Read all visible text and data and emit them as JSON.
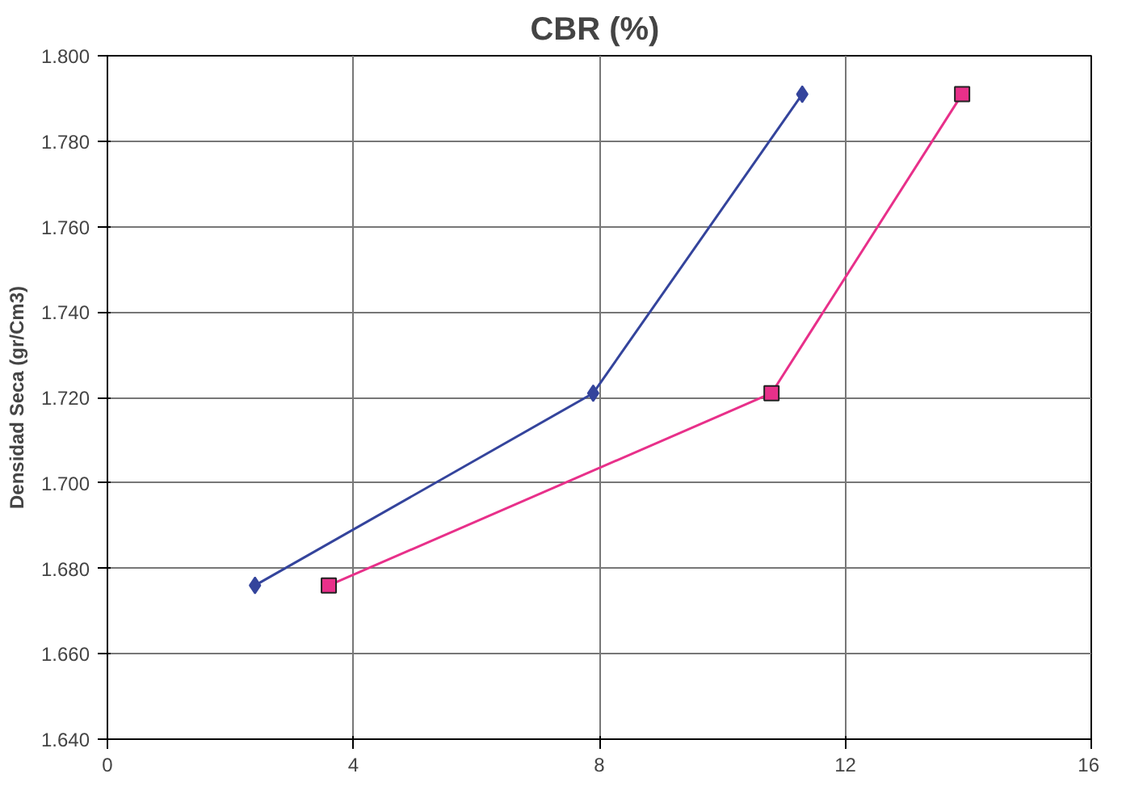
{
  "chart_data": {
    "type": "line",
    "title": "CBR  (%)",
    "ylabel": "Densidad Seca (gr/Cm3)",
    "xlim": [
      0,
      16
    ],
    "xticks": [
      0,
      4,
      8,
      12,
      16
    ],
    "ylim": [
      1.64,
      1.8
    ],
    "yticks": [
      {
        "value": 1.64,
        "label": "1.640"
      },
      {
        "value": 1.66,
        "label": "1.660"
      },
      {
        "value": 1.68,
        "label": "1.680"
      },
      {
        "value": 1.7,
        "label": "1.700"
      },
      {
        "value": 1.72,
        "label": "1.720"
      },
      {
        "value": 1.74,
        "label": "1.740"
      },
      {
        "value": 1.76,
        "label": "1.760"
      },
      {
        "value": 1.78,
        "label": "1.780"
      },
      {
        "value": 1.8,
        "label": "1.800"
      }
    ],
    "grid": true,
    "marker": "diamond",
    "series": [
      {
        "color": "#34449c",
        "x": [
          2.4,
          7.9,
          11.3
        ],
        "values": [
          1.676,
          1.721,
          1.791
        ]
      },
      {
        "color": "#e8308a",
        "marker": "square",
        "x": [
          3.6,
          10.8,
          13.9
        ],
        "values": [
          1.676,
          1.721,
          1.791
        ]
      }
    ]
  }
}
